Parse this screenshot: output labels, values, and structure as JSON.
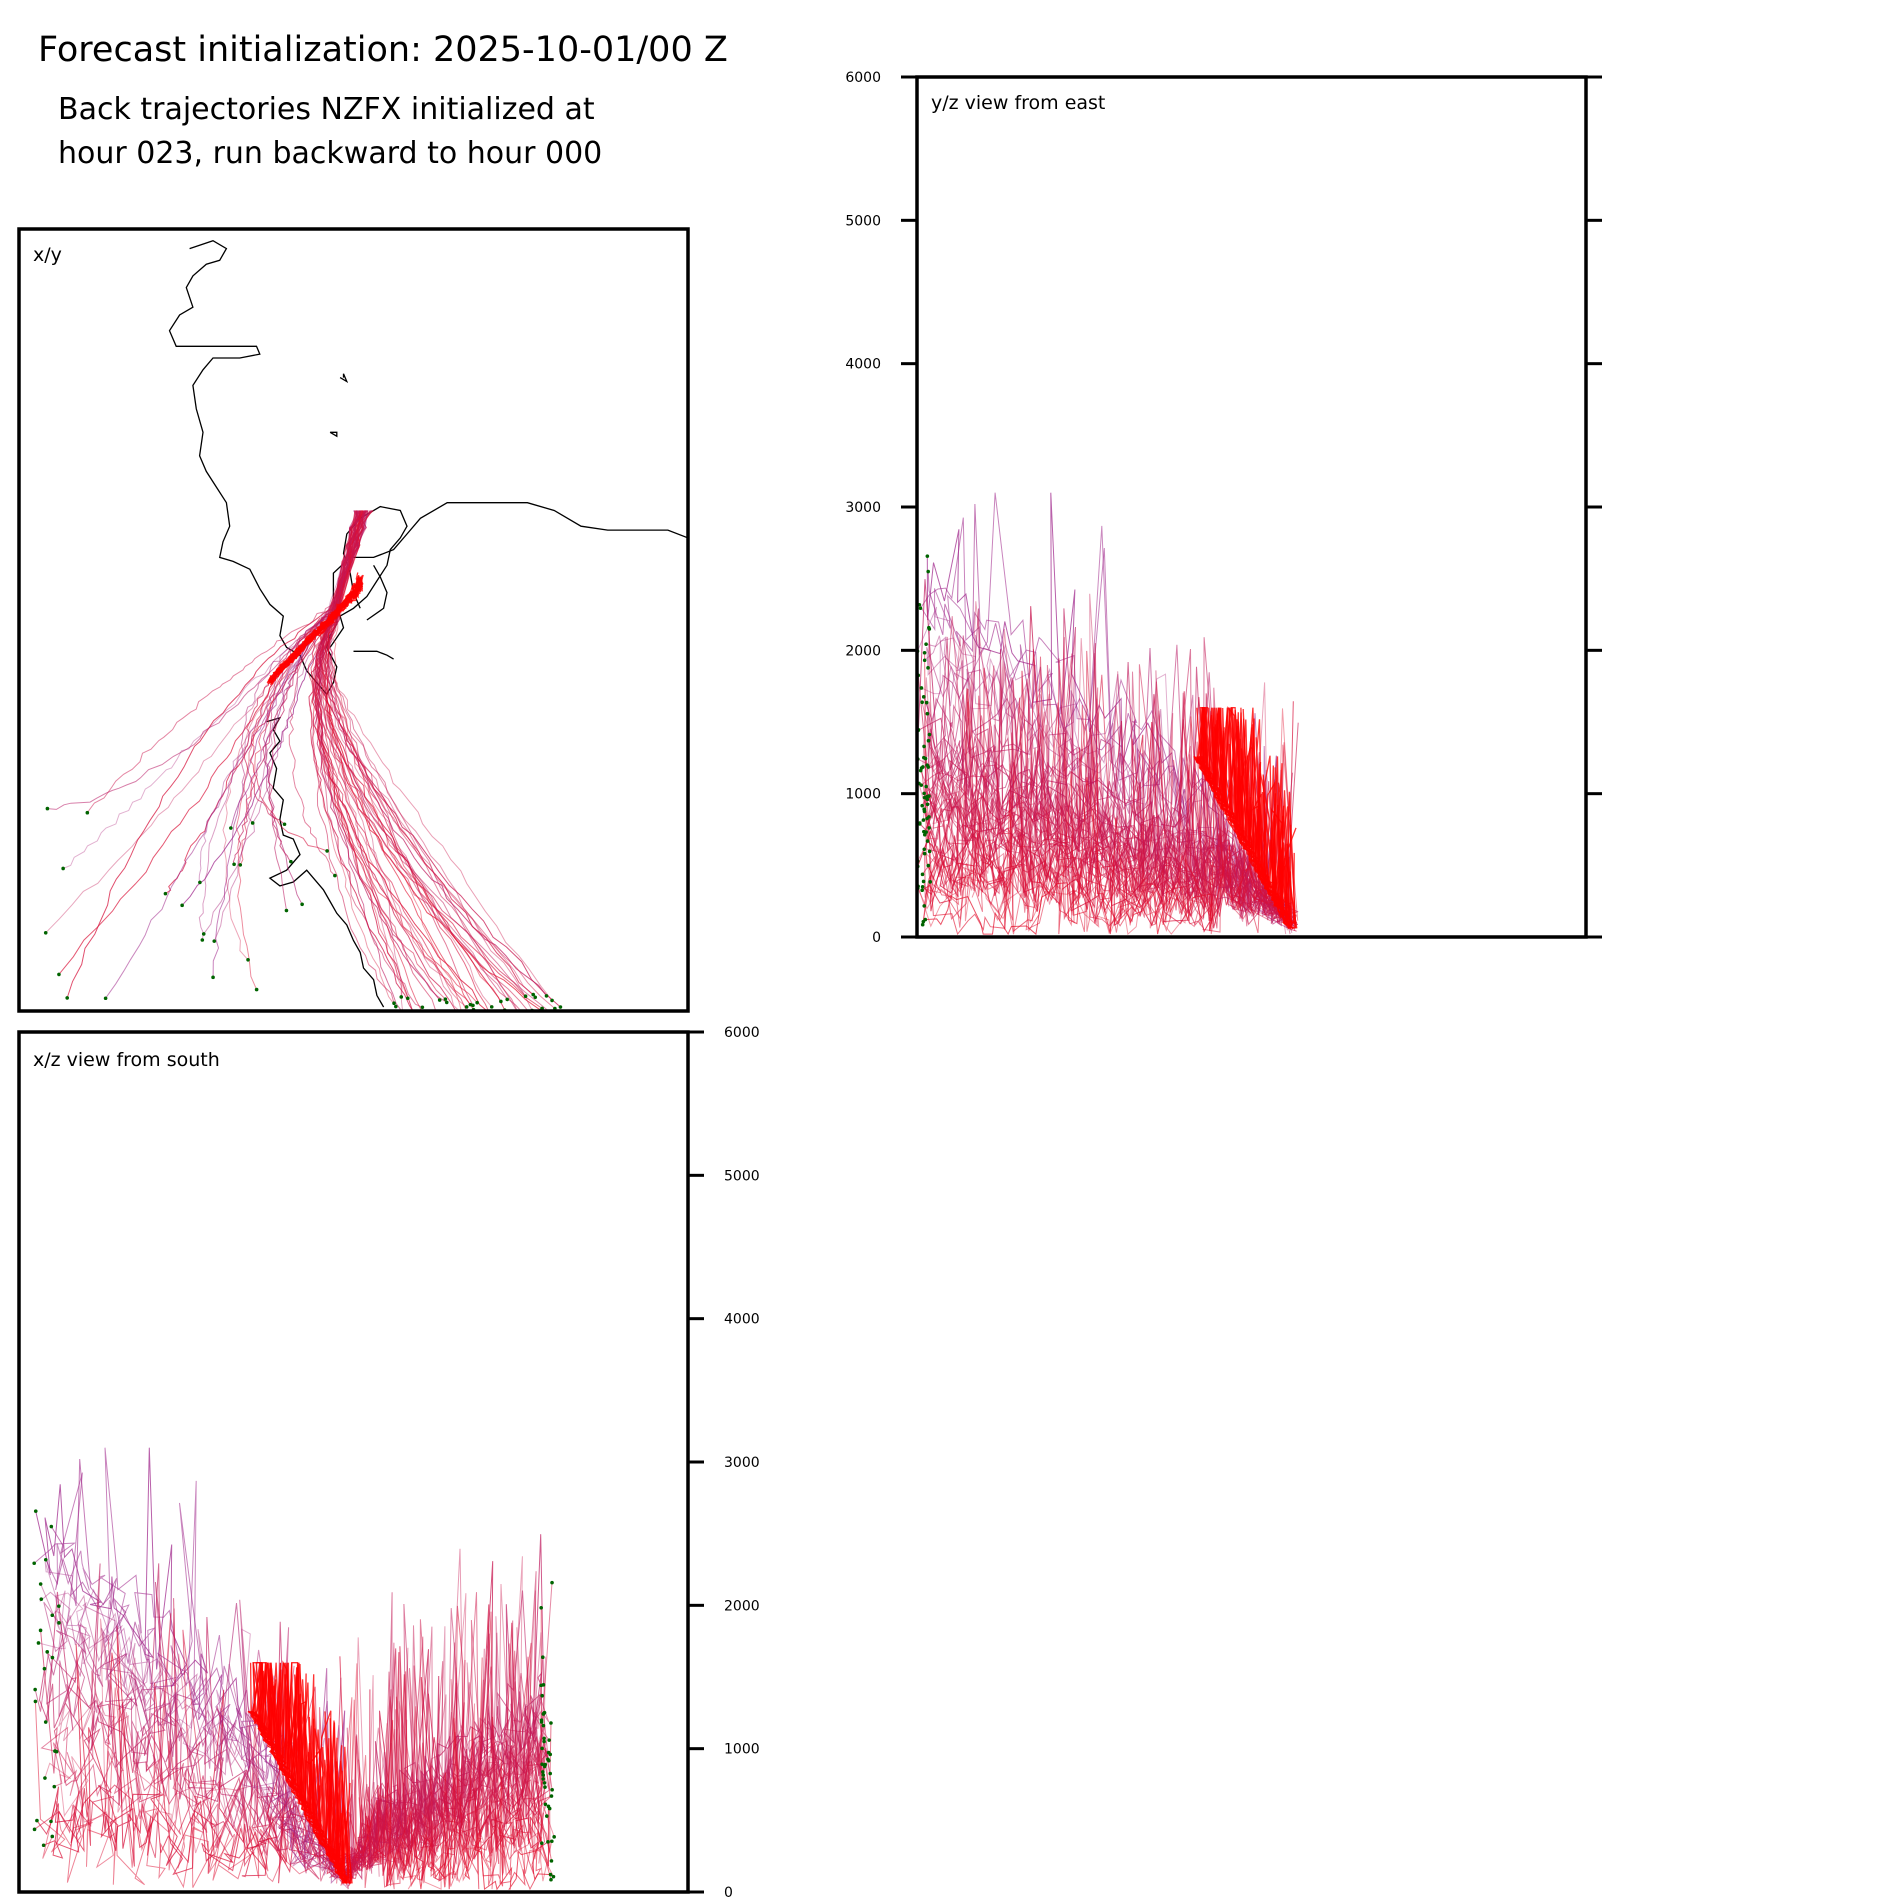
{
  "header": {
    "title": "Forecast initialization: 2025-10-01/00 Z",
    "subtitle_line1": "Back trajectories NZFX initialized at",
    "subtitle_line2": "hour 023, run backward to hour 000"
  },
  "colors": {
    "trajectory_low": "#ff0000",
    "trajectory_high": "#a0288c",
    "endpoint_marker": "#006400",
    "coastline": "#000000"
  },
  "chart_data": [
    {
      "type": "line",
      "panel": "x/y",
      "title": "x/y",
      "description_units": "relative map coordinates (0-100)",
      "xlim": [
        0,
        100
      ],
      "ylim": [
        0,
        100
      ],
      "coastline": [
        [
          [
            25.5,
            97.5
          ],
          [
            29,
            98.5
          ],
          [
            31,
            97.5
          ],
          [
            30,
            96
          ],
          [
            28,
            95.5
          ],
          [
            26,
            94
          ],
          [
            25,
            92.5
          ],
          [
            26,
            90
          ],
          [
            24,
            89
          ],
          [
            22.5,
            87
          ],
          [
            23.5,
            85
          ],
          [
            27,
            85
          ],
          [
            31,
            85
          ],
          [
            35.5,
            85
          ],
          [
            36,
            84
          ],
          [
            33,
            83.5
          ],
          [
            29,
            83.5
          ],
          [
            27.5,
            82
          ],
          [
            26,
            80
          ],
          [
            26.5,
            77
          ],
          [
            27.5,
            74
          ],
          [
            27,
            71
          ],
          [
            28,
            69
          ],
          [
            29.5,
            67
          ],
          [
            31,
            65
          ],
          [
            31.5,
            62
          ],
          [
            30.5,
            60
          ],
          [
            30,
            58
          ],
          [
            32,
            57.5
          ],
          [
            34.5,
            56.5
          ],
          [
            36,
            54
          ],
          [
            37.5,
            52
          ],
          [
            39.5,
            50.5
          ],
          [
            39,
            48
          ],
          [
            40,
            46.5
          ],
          [
            42,
            45.5
          ],
          [
            43,
            43.5
          ],
          [
            44.5,
            42
          ],
          [
            46,
            40.5
          ],
          [
            47,
            42
          ],
          [
            47.5,
            44
          ],
          [
            46,
            46.5
          ],
          [
            46.5,
            48
          ],
          [
            47.5,
            49.5
          ],
          [
            47.5,
            51
          ],
          [
            47,
            53
          ],
          [
            47,
            56
          ],
          [
            49.5,
            58
          ],
          [
            53,
            58
          ],
          [
            56,
            59
          ],
          [
            58,
            61
          ],
          [
            60,
            63
          ],
          [
            64,
            65
          ],
          [
            70,
            65
          ],
          [
            76,
            65
          ],
          [
            80,
            64
          ],
          [
            84,
            62
          ],
          [
            88,
            61.5
          ],
          [
            93,
            61.5
          ],
          [
            97,
            61.5
          ],
          [
            100,
            60.5
          ]
        ],
        [
          [
            46.5,
            46.5
          ],
          [
            48.5,
            49
          ],
          [
            48,
            50.5
          ],
          [
            50,
            51.5
          ],
          [
            52,
            53
          ],
          [
            53.5,
            55
          ],
          [
            55,
            57
          ],
          [
            55.5,
            59
          ],
          [
            57,
            60.5
          ],
          [
            58,
            62
          ],
          [
            57,
            64
          ],
          [
            54,
            64.5
          ],
          [
            51,
            63
          ],
          [
            49,
            61
          ],
          [
            48.5,
            58.5
          ],
          [
            49.5,
            56
          ],
          [
            50,
            53.5
          ],
          [
            51,
            51.5
          ]
        ],
        [
          [
            52,
            50
          ],
          [
            54.5,
            51.5
          ],
          [
            55,
            53.5
          ],
          [
            54,
            55.5
          ],
          [
            53,
            57
          ]
        ],
        [
          [
            50,
            46
          ],
          [
            53.5,
            46
          ],
          [
            55,
            45.5
          ],
          [
            56,
            45
          ]
        ],
        [
          [
            37,
            37
          ],
          [
            39,
            37.5
          ],
          [
            38,
            36
          ],
          [
            39,
            34.5
          ],
          [
            37.5,
            33
          ],
          [
            38.5,
            31
          ],
          [
            38,
            28.5
          ],
          [
            39.5,
            27
          ],
          [
            39,
            24.5
          ],
          [
            39.5,
            22.5
          ],
          [
            41,
            22
          ],
          [
            42,
            20
          ],
          [
            40,
            18
          ],
          [
            37.5,
            17
          ],
          [
            39,
            16
          ],
          [
            41,
            16.5
          ],
          [
            43,
            18
          ],
          [
            44,
            17
          ],
          [
            45.5,
            15.5
          ],
          [
            46.5,
            14
          ],
          [
            47.5,
            12.5
          ],
          [
            49,
            11
          ],
          [
            50,
            9
          ],
          [
            51,
            7.5
          ],
          [
            51.5,
            5.5
          ],
          [
            53,
            4
          ],
          [
            53.5,
            2
          ],
          [
            54.5,
            0.5
          ]
        ],
        [
          [
            48,
            81
          ],
          [
            49,
            80.5
          ],
          [
            48.5,
            81.5
          ],
          [
            48.5,
            81
          ]
        ],
        [
          [
            46.5,
            74
          ],
          [
            47.5,
            74
          ],
          [
            47.5,
            73.5
          ],
          [
            46.5,
            74
          ]
        ]
      ],
      "x_start": 51,
      "y_start": 54
    },
    {
      "type": "line",
      "panel": "y/z",
      "title": "y/z view from east",
      "ylabel": "",
      "ylim": [
        0,
        6000
      ],
      "yticks": [
        0,
        1000,
        2000,
        3000,
        4000,
        5000,
        6000
      ],
      "ytick_labels": [
        "0",
        "1000",
        "2000",
        "3000",
        "4000",
        "5000",
        "6000"
      ],
      "xlim": [
        0,
        100
      ]
    },
    {
      "type": "line",
      "panel": "x/z",
      "title": "x/z view from south",
      "ylim": [
        0,
        6000
      ],
      "yticks": [
        0,
        1000,
        2000,
        3000,
        4000,
        5000,
        6000
      ],
      "ytick_labels": [
        "0",
        "1000",
        "2000",
        "3000",
        "4000",
        "5000",
        "6000"
      ],
      "xlim": [
        0,
        100
      ]
    }
  ]
}
